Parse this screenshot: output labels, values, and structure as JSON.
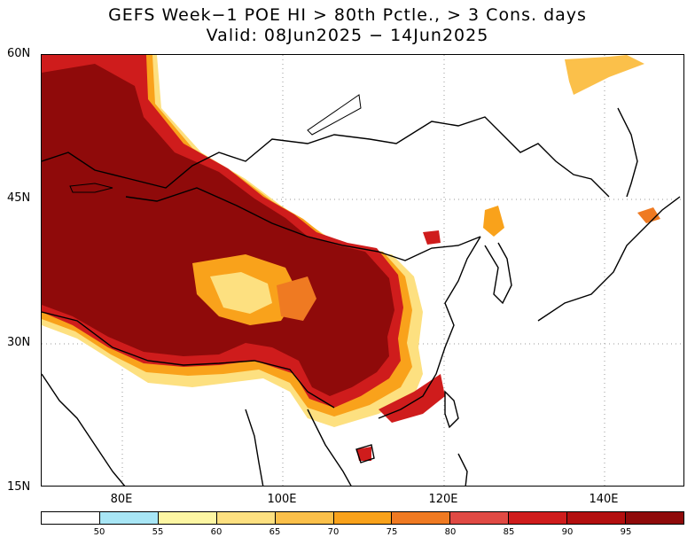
{
  "title": {
    "line1": "GEFS Week−1 POE HI > 80th Pctle., > 3 Cons. days",
    "line2": "Valid: 08Jun2025 − 14Jun2025"
  },
  "map": {
    "lon_range": [
      70,
      150
    ],
    "lat_range": [
      15,
      60
    ],
    "lat_labels": [
      "60N",
      "45N",
      "30N",
      "15N"
    ],
    "lon_labels": [
      "80E",
      "100E",
      "120E",
      "140E"
    ],
    "gridlines": "dotted"
  },
  "colorbar": {
    "levels": [
      "50",
      "55",
      "60",
      "65",
      "70",
      "75",
      "80",
      "85",
      "90",
      "95"
    ],
    "colors": [
      "#ffffff",
      "#a8e6f5",
      "#fdf6a3",
      "#fde080",
      "#fbc04a",
      "#f9a21b",
      "#ef7a22",
      "#e04a44",
      "#cf1c1c",
      "#b30f0f",
      "#8f0a0a"
    ]
  }
}
